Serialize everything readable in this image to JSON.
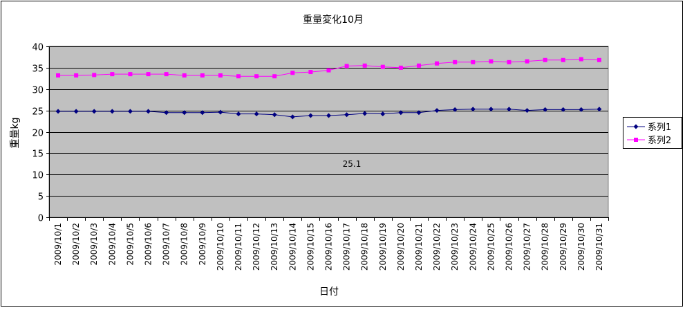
{
  "chart_data": {
    "type": "line",
    "title": "重量変化10月",
    "xlabel": "日付",
    "ylabel": "重量kg",
    "ylim": [
      0,
      40
    ],
    "yticks": [
      0,
      5,
      10,
      15,
      20,
      25,
      30,
      35,
      40
    ],
    "grid": true,
    "legend": "right",
    "plot_background": "#c0c0c0",
    "annotation": "25.1",
    "categories": [
      "2009/10/1",
      "2009/10/2",
      "2009/10/3",
      "2009/10/4",
      "2009/10/5",
      "2009/10/6",
      "2009/10/7",
      "2009/10/8",
      "2009/10/9",
      "2009/10/10",
      "2009/10/11",
      "2009/10/12",
      "2009/10/13",
      "2009/10/14",
      "2009/10/15",
      "2009/10/16",
      "2009/10/17",
      "2009/10/18",
      "2009/10/19",
      "2009/10/20",
      "2009/10/21",
      "2009/10/22",
      "2009/10/23",
      "2009/10/24",
      "2009/10/25",
      "2009/10/26",
      "2009/10/27",
      "2009/10/28",
      "2009/10/29",
      "2009/10/30",
      "2009/10/31"
    ],
    "series": [
      {
        "name": "系列1",
        "color": "#000080",
        "marker": "diamond",
        "values": [
          24.8,
          24.8,
          24.8,
          24.8,
          24.8,
          24.8,
          24.5,
          24.5,
          24.5,
          24.6,
          24.2,
          24.2,
          24.0,
          23.5,
          23.8,
          23.8,
          24.0,
          24.3,
          24.2,
          24.5,
          24.5,
          25.0,
          25.2,
          25.3,
          25.3,
          25.3,
          25.0,
          25.2,
          25.2,
          25.2,
          25.3
        ]
      },
      {
        "name": "系列2",
        "color": "#ff00ff",
        "marker": "square",
        "values": [
          33.2,
          33.2,
          33.3,
          33.5,
          33.5,
          33.5,
          33.5,
          33.2,
          33.2,
          33.2,
          33.0,
          33.0,
          33.0,
          33.8,
          34.0,
          34.4,
          35.4,
          35.5,
          35.2,
          35.0,
          35.5,
          36.0,
          36.3,
          36.3,
          36.5,
          36.3,
          36.5,
          36.8,
          36.8,
          37.0,
          36.8
        ]
      }
    ]
  }
}
